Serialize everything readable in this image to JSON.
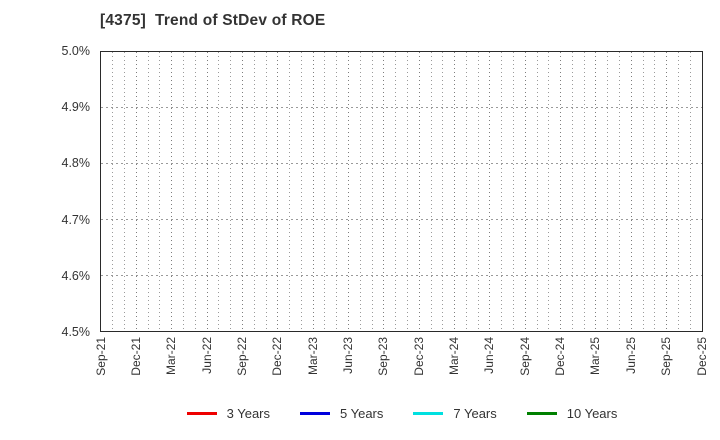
{
  "title": "[4375]  Trend of StDev of ROE",
  "chart_data": {
    "type": "line",
    "title": "[4375]  Trend of StDev of ROE",
    "x_tick_labels": [
      "Sep-21",
      "Dec-21",
      "Mar-22",
      "Jun-22",
      "Sep-22",
      "Dec-22",
      "Mar-23",
      "Jun-23",
      "Sep-23",
      "Dec-23",
      "Mar-24",
      "Jun-24",
      "Sep-24",
      "Dec-24",
      "Mar-25",
      "Jun-25",
      "Sep-25",
      "Dec-25"
    ],
    "minor_x_intervals_per_major": 3,
    "y_tick_labels": [
      "5.0%",
      "4.9%",
      "4.8%",
      "4.7%",
      "4.6%",
      "4.5%"
    ],
    "ylim": [
      4.5,
      5.0
    ],
    "y_unit": "%",
    "grid": true,
    "legend_position": "bottom",
    "series": [
      {
        "name": "3 Years",
        "color": "#ee0000",
        "values": []
      },
      {
        "name": "5 Years",
        "color": "#0000dd",
        "values": []
      },
      {
        "name": "7 Years",
        "color": "#00e0e0",
        "values": []
      },
      {
        "name": "10 Years",
        "color": "#008000",
        "values": []
      }
    ]
  },
  "colors": {
    "background": "#ffffff",
    "frame": "#2a2a2a",
    "grid_minor": "#9a9a9a",
    "grid_major": "#7d7d7d",
    "text": "#333333"
  }
}
